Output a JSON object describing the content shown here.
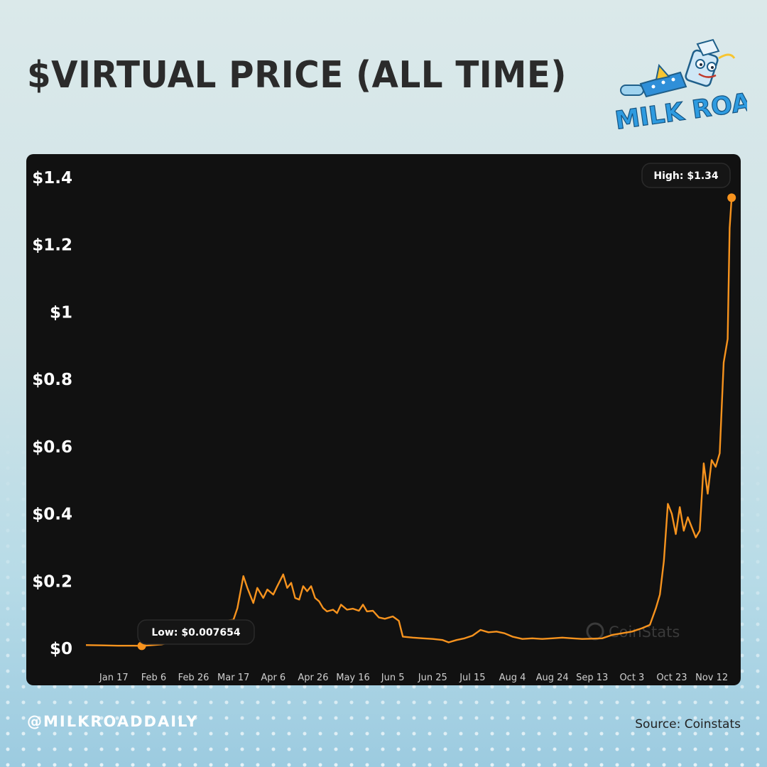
{
  "header": {
    "title": "$VIRTUAL PRICE (ALL TIME)",
    "logo_text": "MILK ROAD",
    "logo_icon": "milk-carton-mascot-icon"
  },
  "footer": {
    "handle": "@MILKROADDAILY",
    "source": "Source: Coinstats"
  },
  "colors": {
    "line": "#f7931e",
    "panel_bg": "#111111",
    "title": "#2b2b2b",
    "logo_blue": "#2e9be0"
  },
  "chart_data": {
    "type": "line",
    "title": "",
    "xlabel": "",
    "ylabel": "",
    "ylim": [
      0,
      1.4
    ],
    "xlim": [
      "2024-01-03",
      "2024-11-23"
    ],
    "y_ticks": [
      {
        "value": 0,
        "label": "$0"
      },
      {
        "value": 0.2,
        "label": "$0.2"
      },
      {
        "value": 0.4,
        "label": "$0.4"
      },
      {
        "value": 0.6,
        "label": "$0.6"
      },
      {
        "value": 0.8,
        "label": "$0.8"
      },
      {
        "value": 1.0,
        "label": "$1"
      },
      {
        "value": 1.2,
        "label": "$1.2"
      },
      {
        "value": 1.4,
        "label": "$1.4"
      }
    ],
    "x_ticks": [
      {
        "date": "2024-01-17",
        "label": "Jan 17"
      },
      {
        "date": "2024-02-06",
        "label": "Feb 6"
      },
      {
        "date": "2024-02-26",
        "label": "Feb 26"
      },
      {
        "date": "2024-03-17",
        "label": "Mar 17"
      },
      {
        "date": "2024-04-06",
        "label": "Apr 6"
      },
      {
        "date": "2024-04-26",
        "label": "Apr 26"
      },
      {
        "date": "2024-05-16",
        "label": "May 16"
      },
      {
        "date": "2024-06-05",
        "label": "Jun 5"
      },
      {
        "date": "2024-06-25",
        "label": "Jun 25"
      },
      {
        "date": "2024-07-15",
        "label": "Jul 15"
      },
      {
        "date": "2024-08-04",
        "label": "Aug 4"
      },
      {
        "date": "2024-08-24",
        "label": "Aug 24"
      },
      {
        "date": "2024-09-13",
        "label": "Sep 13"
      },
      {
        "date": "2024-10-03",
        "label": "Oct 3"
      },
      {
        "date": "2024-10-23",
        "label": "Oct 23"
      },
      {
        "date": "2024-11-12",
        "label": "Nov 12"
      }
    ],
    "annotations": {
      "low": {
        "label": "Low: $0.007654",
        "date": "2024-01-31",
        "value": 0.007654
      },
      "high": {
        "label": "High: $1.34",
        "date": "2024-11-22",
        "value": 1.34
      }
    },
    "watermark": "CoinStats",
    "grid": false,
    "series": [
      {
        "points": [
          [
            "2024-01-03",
            0.01
          ],
          [
            "2024-01-11",
            0.009
          ],
          [
            "2024-01-19",
            0.008
          ],
          [
            "2024-01-27",
            0.008
          ],
          [
            "2024-01-31",
            0.0077
          ],
          [
            "2024-02-04",
            0.009
          ],
          [
            "2024-02-10",
            0.012
          ],
          [
            "2024-02-16",
            0.02
          ],
          [
            "2024-02-22",
            0.03
          ],
          [
            "2024-02-28",
            0.042
          ],
          [
            "2024-03-05",
            0.06
          ],
          [
            "2024-03-11",
            0.08
          ],
          [
            "2024-03-17",
            0.085
          ],
          [
            "2024-03-19",
            0.12
          ],
          [
            "2024-03-22",
            0.215
          ],
          [
            "2024-03-24",
            0.18
          ],
          [
            "2024-03-27",
            0.135
          ],
          [
            "2024-03-29",
            0.18
          ],
          [
            "2024-04-01",
            0.15
          ],
          [
            "2024-04-03",
            0.175
          ],
          [
            "2024-04-06",
            0.16
          ],
          [
            "2024-04-08",
            0.185
          ],
          [
            "2024-04-11",
            0.22
          ],
          [
            "2024-04-13",
            0.18
          ],
          [
            "2024-04-15",
            0.195
          ],
          [
            "2024-04-17",
            0.15
          ],
          [
            "2024-04-19",
            0.145
          ],
          [
            "2024-04-21",
            0.185
          ],
          [
            "2024-04-23",
            0.17
          ],
          [
            "2024-04-25",
            0.185
          ],
          [
            "2024-04-27",
            0.15
          ],
          [
            "2024-04-29",
            0.14
          ],
          [
            "2024-05-01",
            0.12
          ],
          [
            "2024-05-03",
            0.11
          ],
          [
            "2024-05-06",
            0.115
          ],
          [
            "2024-05-08",
            0.105
          ],
          [
            "2024-05-10",
            0.13
          ],
          [
            "2024-05-13",
            0.115
          ],
          [
            "2024-05-16",
            0.118
          ],
          [
            "2024-05-19",
            0.112
          ],
          [
            "2024-05-21",
            0.13
          ],
          [
            "2024-05-23",
            0.11
          ],
          [
            "2024-05-26",
            0.112
          ],
          [
            "2024-05-29",
            0.092
          ],
          [
            "2024-06-01",
            0.088
          ],
          [
            "2024-06-05",
            0.095
          ],
          [
            "2024-06-08",
            0.082
          ],
          [
            "2024-06-10",
            0.035
          ],
          [
            "2024-06-15",
            0.032
          ],
          [
            "2024-06-20",
            0.03
          ],
          [
            "2024-06-25",
            0.028
          ],
          [
            "2024-06-30",
            0.025
          ],
          [
            "2024-07-03",
            0.018
          ],
          [
            "2024-07-07",
            0.025
          ],
          [
            "2024-07-11",
            0.03
          ],
          [
            "2024-07-15",
            0.038
          ],
          [
            "2024-07-19",
            0.055
          ],
          [
            "2024-07-23",
            0.048
          ],
          [
            "2024-07-27",
            0.05
          ],
          [
            "2024-07-31",
            0.045
          ],
          [
            "2024-08-04",
            0.035
          ],
          [
            "2024-08-09",
            0.028
          ],
          [
            "2024-08-14",
            0.03
          ],
          [
            "2024-08-19",
            0.028
          ],
          [
            "2024-08-24",
            0.03
          ],
          [
            "2024-08-29",
            0.032
          ],
          [
            "2024-09-03",
            0.03
          ],
          [
            "2024-09-08",
            0.028
          ],
          [
            "2024-09-13",
            0.029
          ],
          [
            "2024-09-18",
            0.03
          ],
          [
            "2024-09-23",
            0.04
          ],
          [
            "2024-09-28",
            0.045
          ],
          [
            "2024-10-03",
            0.05
          ],
          [
            "2024-10-08",
            0.06
          ],
          [
            "2024-10-12",
            0.07
          ],
          [
            "2024-10-15",
            0.12
          ],
          [
            "2024-10-17",
            0.16
          ],
          [
            "2024-10-19",
            0.26
          ],
          [
            "2024-10-21",
            0.43
          ],
          [
            "2024-10-23",
            0.4
          ],
          [
            "2024-10-25",
            0.34
          ],
          [
            "2024-10-27",
            0.42
          ],
          [
            "2024-10-29",
            0.35
          ],
          [
            "2024-10-31",
            0.39
          ],
          [
            "2024-11-02",
            0.36
          ],
          [
            "2024-11-04",
            0.33
          ],
          [
            "2024-11-06",
            0.35
          ],
          [
            "2024-11-08",
            0.55
          ],
          [
            "2024-11-10",
            0.46
          ],
          [
            "2024-11-12",
            0.56
          ],
          [
            "2024-11-14",
            0.54
          ],
          [
            "2024-11-16",
            0.58
          ],
          [
            "2024-11-18",
            0.85
          ],
          [
            "2024-11-20",
            0.92
          ],
          [
            "2024-11-21",
            1.25
          ],
          [
            "2024-11-22",
            1.34
          ]
        ]
      }
    ]
  }
}
